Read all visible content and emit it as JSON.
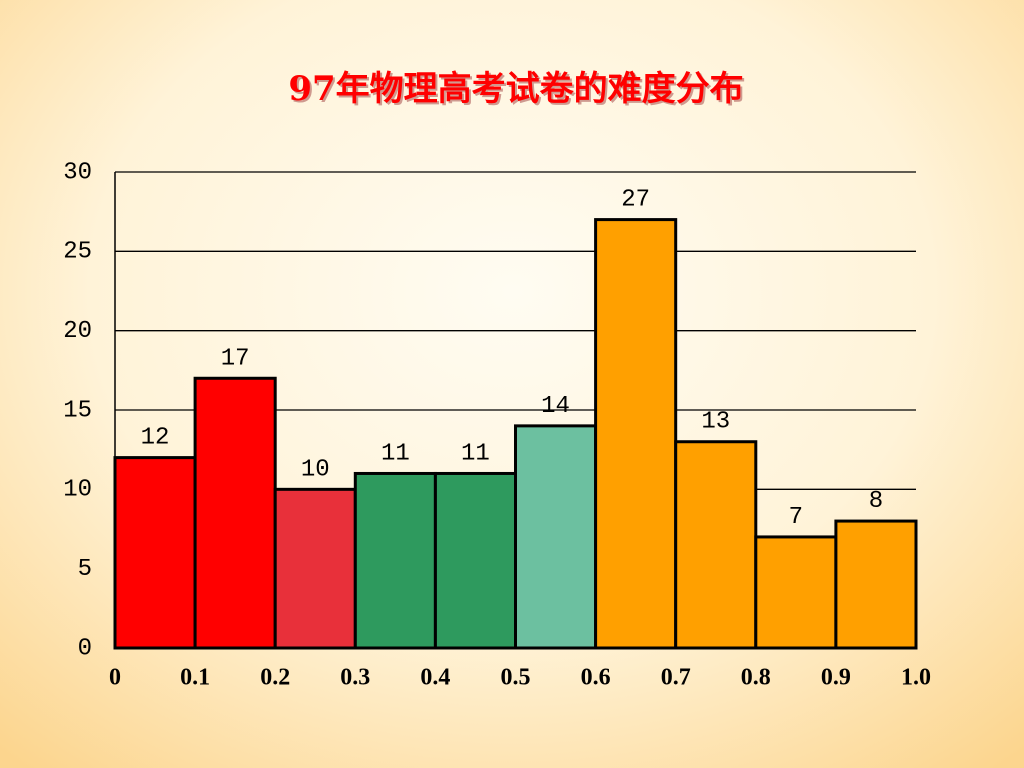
{
  "chart_data": {
    "type": "histogram",
    "title": "97年物理高考试卷的难度分布",
    "bins": [
      0,
      0.1,
      0.2,
      0.3,
      0.4,
      0.5,
      0.6,
      0.7,
      0.8,
      0.9,
      1
    ],
    "counts": [
      12,
      17,
      10,
      11,
      11,
      14,
      27,
      13,
      7,
      8
    ],
    "colors": [
      "#ff0000",
      "#ff0000",
      "#e8303a",
      "#2e9a5e",
      "#2e9a5e",
      "#6cc0a0",
      "#ffa000",
      "#ffa000",
      "#ffa000",
      "#ffa000"
    ],
    "xlim": [
      0,
      1
    ],
    "xticks": [
      0,
      0.1,
      0.2,
      0.3,
      0.4,
      0.5,
      0.6,
      0.7,
      0.8,
      0.9,
      {
        "value": 1,
        "label": "1.0"
      }
    ],
    "ylim": [
      0,
      30
    ],
    "yticks": [
      0,
      5,
      10,
      15,
      20,
      25,
      30
    ],
    "grid": true
  }
}
